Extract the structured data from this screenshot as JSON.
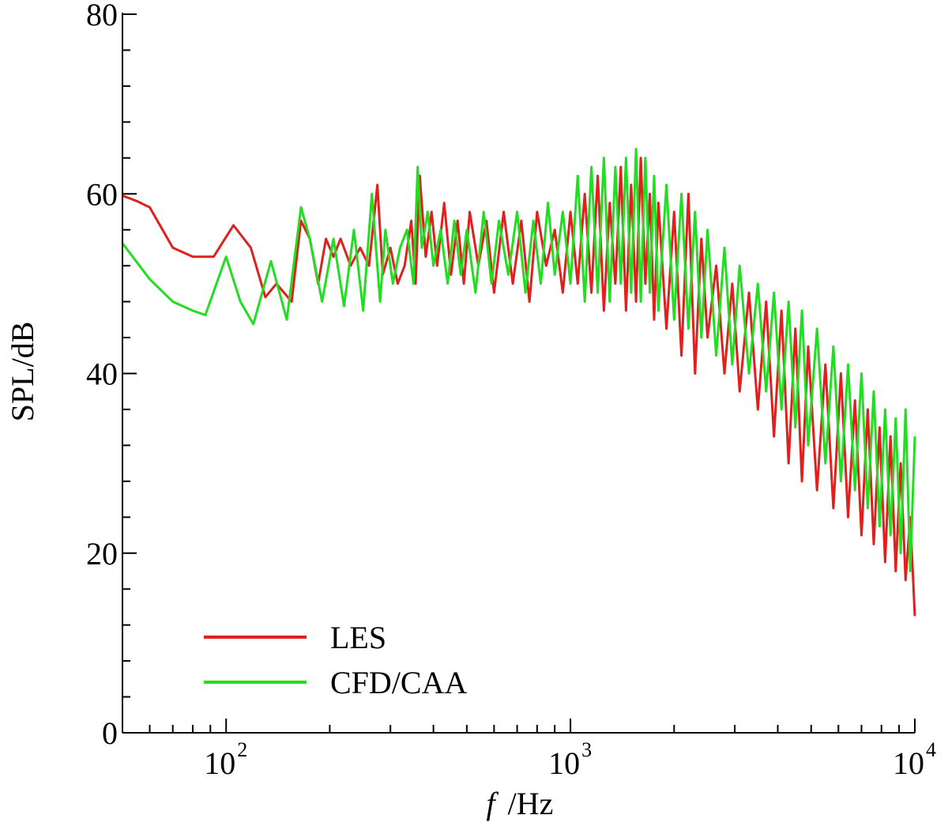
{
  "chart_data": {
    "type": "line",
    "title": "",
    "xlabel_var": "f",
    "xlabel_unit": "/Hz",
    "ylabel": "SPL/dB",
    "xscale": "log",
    "xlim": [
      50,
      10000
    ],
    "ylim": [
      0,
      80
    ],
    "yticks": [
      "0",
      "20",
      "40",
      "60",
      "80"
    ],
    "xticks": [
      {
        "base": "10",
        "exp": "2"
      },
      {
        "base": "10",
        "exp": "3"
      },
      {
        "base": "10",
        "exp": "4"
      }
    ],
    "grid": false,
    "legend_position": "bottom-left",
    "series": [
      {
        "name": "LES",
        "color": "#e0201c",
        "x": [
          50,
          55,
          60,
          70,
          80,
          92,
          105,
          118,
          130,
          140,
          155,
          165,
          175,
          185,
          195,
          205,
          215,
          230,
          245,
          260,
          275,
          285,
          300,
          315,
          330,
          345,
          355,
          365,
          380,
          395,
          410,
          430,
          450,
          470,
          490,
          510,
          540,
          570,
          600,
          640,
          680,
          720,
          760,
          800,
          850,
          900,
          950,
          1000,
          1050,
          1100,
          1150,
          1200,
          1250,
          1300,
          1350,
          1400,
          1450,
          1500,
          1550,
          1600,
          1650,
          1700,
          1750,
          1800,
          1900,
          2000,
          2100,
          2200,
          2300,
          2400,
          2500,
          2650,
          2800,
          2950,
          3100,
          3300,
          3500,
          3700,
          3900,
          4100,
          4300,
          4500,
          4700,
          4900,
          5200,
          5500,
          5800,
          6100,
          6400,
          6700,
          7000,
          7300,
          7600,
          7900,
          8200,
          8500,
          8800,
          9100,
          9400,
          9700,
          10000
        ],
        "y": [
          59.8,
          59.2,
          58.5,
          54.0,
          53.0,
          53.0,
          56.5,
          54.0,
          48.5,
          50.0,
          48.0,
          57.0,
          55.0,
          50.0,
          55.0,
          53.0,
          55.0,
          52.0,
          54.0,
          52.0,
          61.0,
          51.0,
          54.0,
          50.0,
          52.0,
          57.0,
          50.0,
          62.0,
          53.0,
          58.0,
          52.0,
          59.0,
          51.0,
          57.0,
          50.0,
          58.0,
          52.0,
          57.0,
          49.0,
          58.0,
          50.0,
          57.0,
          48.0,
          58.0,
          52.0,
          56.0,
          49.0,
          58.0,
          50.0,
          60.0,
          49.0,
          62.0,
          47.0,
          59.0,
          50.0,
          63.0,
          47.0,
          61.0,
          48.0,
          64.0,
          50.0,
          60.0,
          46.0,
          59.0,
          45.0,
          58.0,
          42.0,
          60.0,
          40.0,
          55.0,
          44.0,
          52.0,
          40.0,
          50.0,
          38.0,
          49.0,
          36.0,
          48.0,
          33.0,
          47.0,
          30.0,
          45.0,
          28.0,
          43.0,
          27.0,
          41.0,
          25.0,
          40.0,
          24.0,
          37.0,
          22.0,
          36.0,
          21.0,
          34.0,
          19.0,
          33.0,
          18.0,
          30.0,
          17.0,
          24.0,
          13.0
        ]
      },
      {
        "name": "CFD/CAA",
        "color": "#22dd22",
        "x": [
          50,
          60,
          70,
          80,
          87,
          100,
          110,
          120,
          135,
          150,
          165,
          175,
          190,
          205,
          220,
          235,
          250,
          265,
          280,
          290,
          305,
          320,
          335,
          350,
          360,
          370,
          385,
          400,
          420,
          440,
          460,
          480,
          500,
          530,
          560,
          590,
          620,
          660,
          700,
          740,
          780,
          820,
          860,
          900,
          950,
          1000,
          1050,
          1100,
          1150,
          1200,
          1250,
          1300,
          1350,
          1400,
          1450,
          1500,
          1550,
          1600,
          1650,
          1700,
          1750,
          1800,
          1900,
          2000,
          2100,
          2200,
          2300,
          2400,
          2500,
          2650,
          2800,
          2950,
          3100,
          3300,
          3500,
          3700,
          3900,
          4100,
          4300,
          4500,
          4700,
          4900,
          5200,
          5500,
          5800,
          6100,
          6400,
          6700,
          7000,
          7300,
          7600,
          7900,
          8200,
          8500,
          8800,
          9100,
          9400,
          9700,
          10000
        ],
        "y": [
          54.5,
          50.5,
          48.0,
          47.0,
          46.5,
          53.0,
          48.0,
          45.5,
          52.5,
          46.0,
          58.5,
          55.0,
          48.0,
          55.0,
          47.5,
          56.0,
          47.0,
          60.0,
          48.0,
          56.0,
          50.0,
          54.0,
          56.0,
          50.0,
          63.0,
          54.0,
          58.0,
          52.0,
          56.0,
          50.0,
          57.0,
          51.0,
          56.0,
          49.0,
          58.0,
          50.0,
          57.0,
          51.0,
          58.0,
          49.0,
          57.0,
          50.0,
          59.0,
          51.0,
          58.0,
          50.0,
          62.0,
          48.0,
          63.0,
          49.0,
          64.0,
          48.0,
          63.0,
          50.0,
          64.0,
          49.0,
          65.0,
          48.0,
          64.0,
          49.0,
          62.0,
          47.0,
          61.0,
          46.0,
          60.0,
          45.0,
          58.0,
          44.0,
          56.0,
          42.0,
          54.0,
          41.0,
          52.0,
          40.0,
          50.0,
          38.0,
          49.0,
          36.0,
          48.0,
          34.0,
          47.0,
          32.0,
          45.0,
          30.0,
          43.0,
          28.0,
          41.0,
          27.0,
          40.0,
          25.0,
          38.0,
          23.0,
          36.0,
          22.0,
          35.0,
          20.0,
          36.0,
          18.0,
          33.0
        ]
      }
    ]
  }
}
